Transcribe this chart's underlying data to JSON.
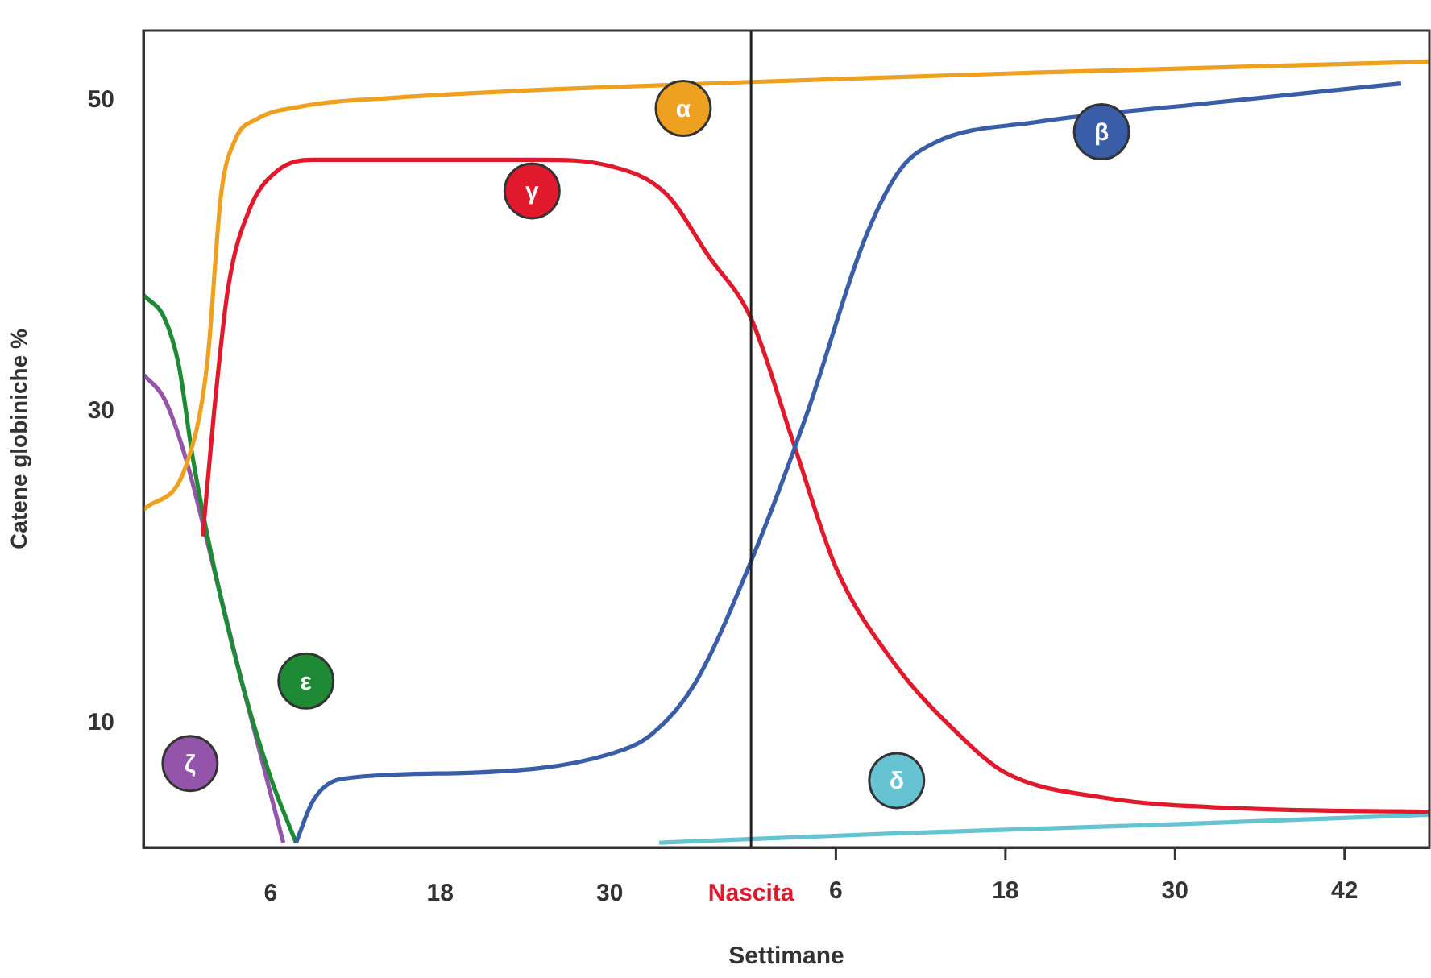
{
  "chart_data": {
    "type": "line",
    "xlabel": "Settimane",
    "ylabel": "Catene globiniche %",
    "xlim": [
      -3,
      88
    ],
    "ylim": [
      2,
      54.5
    ],
    "xticks": [
      6,
      18,
      30,
      {
        "value": 40,
        "label": "Nascita"
      }
    ],
    "x2lim": [
      -43,
      48
    ],
    "x2ticks": [
      6,
      18,
      30,
      42
    ],
    "yticks": [
      10,
      30,
      50
    ],
    "grid": false,
    "legend": false,
    "marker": "none",
    "line_style": "solid",
    "ref_lines": [
      {
        "axis": "x",
        "value": 40,
        "color": "#222222"
      }
    ],
    "series": [
      {
        "name": "α",
        "color": "#eea020",
        "x": [
          -3,
          0,
          1.5,
          2.5,
          3.5,
          5,
          8,
          15,
          40,
          60,
          88
        ],
        "values": [
          23.7,
          26.5,
          33,
          44,
          47.5,
          48.8,
          49.6,
          50.2,
          51.2,
          51.8,
          52.5
        ]
      },
      {
        "name": "β",
        "color": "#3a5da8",
        "x": [
          7.8,
          9,
          11,
          20,
          30,
          33,
          36,
          40,
          44,
          48,
          50.5,
          53,
          60,
          72,
          86
        ],
        "values": [
          2.3,
          5,
          6.4,
          6.8,
          8,
          9.3,
          12.5,
          20.4,
          30,
          41,
          45.5,
          47.3,
          48.6,
          49.8,
          51.1
        ]
      },
      {
        "name": "γ",
        "color": "#e01a2c",
        "x": [
          1.2,
          2,
          3,
          4.5,
          6.5,
          9,
          25,
          30,
          34,
          37,
          40,
          43,
          46,
          50,
          55,
          58,
          65,
          75,
          88
        ],
        "values": [
          22,
          30,
          38,
          43,
          45.5,
          46.2,
          46.2,
          45.8,
          44,
          40,
          36,
          28,
          20,
          14,
          9,
          6.8,
          5.2,
          4.5,
          4.3
        ]
      },
      {
        "name": "δ",
        "color": "#66c4d2",
        "x": [
          33.5,
          50,
          70,
          88
        ],
        "values": [
          2.3,
          2.9,
          3.5,
          4.1
        ]
      },
      {
        "name": "ε",
        "color": "#1f8a35",
        "x": [
          -3,
          -1.5,
          -0.5,
          0.5,
          2,
          4,
          6,
          7.8
        ],
        "values": [
          37.5,
          36,
          33,
          27,
          20,
          12.5,
          6.5,
          2.3
        ]
      },
      {
        "name": "ζ",
        "color": "#9355aa",
        "x": [
          -3,
          -1.5,
          0,
          1.7,
          4,
          6.9
        ],
        "values": [
          32.4,
          30.8,
          27,
          21,
          12.5,
          2.3
        ]
      }
    ]
  }
}
